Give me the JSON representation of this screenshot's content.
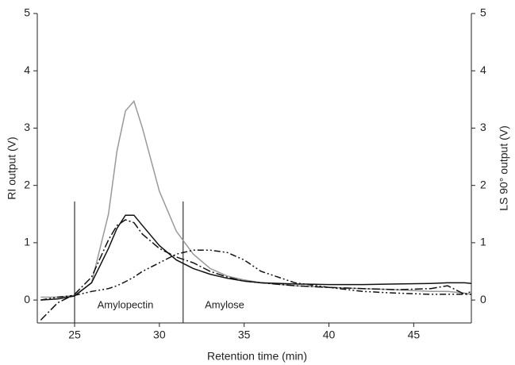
{
  "chart_data": {
    "type": "line",
    "xlabel": "Retention time (min)",
    "ylabel": "RI output (V)",
    "y2label": "LS 90° output (V)",
    "xlim": [
      22.8,
      48.4
    ],
    "xticks": [
      25,
      30,
      35,
      40,
      45
    ],
    "ylim": [
      -0.4,
      5
    ],
    "yticks": [
      0,
      1,
      2,
      3,
      4,
      5
    ],
    "y2lim": [
      -0.4,
      5
    ],
    "y2ticks": [
      0,
      1,
      2,
      3,
      4,
      5
    ],
    "x": [
      23,
      24,
      25,
      26,
      27,
      27.5,
      28,
      28.5,
      29,
      30,
      31,
      32,
      33,
      34,
      35,
      36,
      38,
      40,
      42,
      44,
      46,
      47,
      48,
      48.4
    ],
    "series": [
      {
        "color": "#999999",
        "dash": "none",
        "axis": "y2",
        "values": [
          0.05,
          0.05,
          0.08,
          0.3,
          1.5,
          2.6,
          3.3,
          3.47,
          3.0,
          1.9,
          1.2,
          0.8,
          0.55,
          0.42,
          0.35,
          0.3,
          0.25,
          0.22,
          0.2,
          0.18,
          0.15,
          0.15,
          0.12,
          0.1
        ]
      },
      {
        "color": "#111111",
        "dash": "none",
        "values": [
          0.0,
          0.02,
          0.07,
          0.3,
          0.9,
          1.25,
          1.48,
          1.48,
          1.3,
          0.95,
          0.7,
          0.55,
          0.45,
          0.38,
          0.33,
          0.3,
          0.28,
          0.27,
          0.27,
          0.28,
          0.29,
          0.3,
          0.3,
          0.29
        ]
      },
      {
        "color": "#111111",
        "dash": "10,3,2,3",
        "values": [
          -0.35,
          -0.05,
          0.1,
          0.4,
          1.05,
          1.3,
          1.4,
          1.35,
          1.15,
          0.9,
          0.75,
          0.65,
          0.5,
          0.4,
          0.33,
          0.3,
          0.25,
          0.22,
          0.2,
          0.18,
          0.2,
          0.25,
          0.1,
          0.1
        ]
      },
      {
        "color": "#111111",
        "dash": "8,3,2,3,2,3",
        "values": [
          0.0,
          0.05,
          0.08,
          0.15,
          0.2,
          0.25,
          0.32,
          0.4,
          0.5,
          0.65,
          0.8,
          0.87,
          0.87,
          0.83,
          0.7,
          0.5,
          0.3,
          0.22,
          0.15,
          0.12,
          0.1,
          0.1,
          0.1,
          0.15
        ]
      }
    ],
    "vlines": {
      "x": [
        25,
        31.4
      ],
      "height": 1.72
    },
    "annotations": [
      "Amylopectin",
      "Amylose"
    ]
  }
}
